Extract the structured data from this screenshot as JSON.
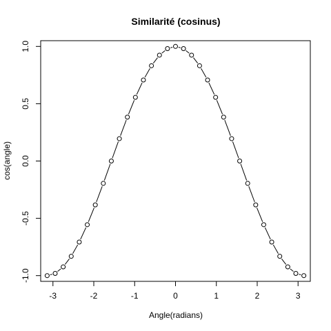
{
  "chart_data": {
    "type": "line",
    "title": "Similarité (cosinus)",
    "xlabel": "Angle(radians)",
    "ylabel": "cos(angle)",
    "xlim": [
      -3.3,
      3.3
    ],
    "ylim": [
      -1.05,
      1.05
    ],
    "xticks": [
      "-3",
      "-2",
      "-1",
      "0",
      "1",
      "2",
      "3"
    ],
    "yticks": [
      "-1.0",
      "-0.5",
      "0.0",
      "0.5",
      "1.0"
    ],
    "grid": false,
    "x": [
      -3.1416,
      -2.9452,
      -2.7489,
      -2.5525,
      -2.3562,
      -2.1598,
      -1.9635,
      -1.7671,
      -1.5708,
      -1.3744,
      -1.1781,
      -0.9817,
      -0.7854,
      -0.589,
      -0.3927,
      -0.1963,
      0,
      0.1963,
      0.3927,
      0.589,
      0.7854,
      0.9817,
      1.1781,
      1.3744,
      1.5708,
      1.7671,
      1.9635,
      2.1598,
      2.3562,
      2.5525,
      2.7489,
      2.9452,
      3.1416
    ],
    "y": [
      -1,
      -0.9808,
      -0.9239,
      -0.8315,
      -0.7071,
      -0.5556,
      -0.3827,
      -0.1951,
      0,
      0.1951,
      0.3827,
      0.5556,
      0.7071,
      0.8315,
      0.9239,
      0.9808,
      1,
      0.9808,
      0.9239,
      0.8315,
      0.7071,
      0.5556,
      0.3827,
      0.1951,
      0,
      -0.1951,
      -0.3827,
      -0.5556,
      -0.7071,
      -0.8315,
      -0.9239,
      -0.9808,
      -1
    ]
  }
}
